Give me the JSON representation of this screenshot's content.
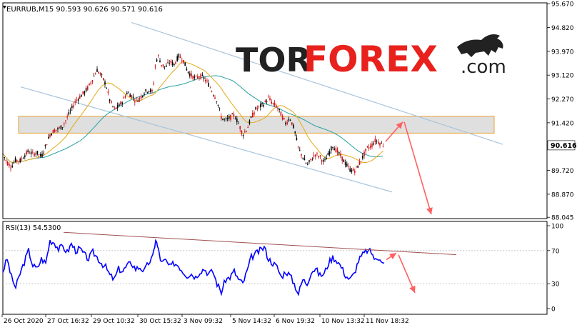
{
  "header": {
    "symbol_line": "EURRUB,M15  90.593 90.626 90.571 90.616"
  },
  "watermark": {
    "text_dark": "TOR",
    "text_red": "FOREX",
    "text_com": ".com"
  },
  "colors": {
    "background": "#ffffff",
    "candle_up": "#000000",
    "candle_down": "#d01010",
    "ma_fast": "#e6a817",
    "ma_slow": "#26a0a0",
    "channel": "#a8c4dc",
    "zone_fill": "#d9d9d9",
    "zone_border": "#e8a030",
    "arrow": "#ff5f5f",
    "rsi_line": "#0000ff",
    "rsi_trendline": "#a05050",
    "price_label_bg": "#ffffff"
  },
  "chart_data": [
    {
      "type": "candlestick",
      "title": "EURRUB,M15",
      "ohlc_header": "90.593 90.626 90.571 90.616",
      "y_ticks": [
        "95.670",
        "94.820",
        "93.970",
        "93.120",
        "92.270",
        "91.420",
        "90.616",
        "89.720",
        "88.870",
        "88.045"
      ],
      "current_price_label": "90.616",
      "ylim": [
        88.0,
        95.7
      ],
      "x_ticks": [
        "26 Oct 2020",
        "27 Oct 16:32",
        "29 Oct 10:32",
        "30 Oct 15:32",
        "3 Nov 09:32",
        "5 Nov 14:32",
        "6 Nov 19:32",
        "10 Nov 13:32",
        "11 Nov 18:32"
      ],
      "price_path": [
        [
          0,
          90.3
        ],
        [
          6,
          90.0
        ],
        [
          12,
          89.85
        ],
        [
          18,
          90.1
        ],
        [
          24,
          90.05
        ],
        [
          30,
          90.25
        ],
        [
          36,
          90.4
        ],
        [
          42,
          90.3
        ],
        [
          48,
          90.35
        ],
        [
          54,
          90.2
        ],
        [
          60,
          90.6
        ],
        [
          66,
          91.0
        ],
        [
          72,
          91.15
        ],
        [
          78,
          91.2
        ],
        [
          84,
          91.3
        ],
        [
          90,
          91.6
        ],
        [
          96,
          91.9
        ],
        [
          102,
          92.2
        ],
        [
          108,
          92.35
        ],
        [
          114,
          92.5
        ],
        [
          120,
          92.7
        ],
        [
          126,
          93.0
        ],
        [
          132,
          93.3
        ],
        [
          138,
          93.1
        ],
        [
          144,
          92.8
        ],
        [
          150,
          92.2
        ],
        [
          156,
          91.9
        ],
        [
          162,
          92.0
        ],
        [
          168,
          92.2
        ],
        [
          174,
          92.5
        ],
        [
          180,
          92.4
        ],
        [
          186,
          92.2
        ],
        [
          192,
          92.3
        ],
        [
          198,
          92.5
        ],
        [
          204,
          92.6
        ],
        [
          210,
          92.5
        ],
        [
          214,
          93.6
        ],
        [
          218,
          93.8
        ],
        [
          222,
          93.5
        ],
        [
          228,
          93.4
        ],
        [
          234,
          93.6
        ],
        [
          240,
          93.5
        ],
        [
          246,
          93.8
        ],
        [
          252,
          93.7
        ],
        [
          258,
          93.3
        ],
        [
          264,
          93.1
        ],
        [
          270,
          93.0
        ],
        [
          276,
          93.1
        ],
        [
          282,
          93.0
        ],
        [
          288,
          92.8
        ],
        [
          294,
          92.5
        ],
        [
          300,
          92.2
        ],
        [
          306,
          91.6
        ],
        [
          312,
          91.5
        ],
        [
          318,
          91.6
        ],
        [
          324,
          91.7
        ],
        [
          330,
          91.4
        ],
        [
          336,
          91.0
        ],
        [
          342,
          91.2
        ],
        [
          348,
          91.6
        ],
        [
          354,
          91.9
        ],
        [
          360,
          92.0
        ],
        [
          366,
          92.1
        ],
        [
          372,
          92.3
        ],
        [
          378,
          92.1
        ],
        [
          384,
          92.0
        ],
        [
          390,
          91.7
        ],
        [
          396,
          91.4
        ],
        [
          402,
          91.6
        ],
        [
          408,
          91.2
        ],
        [
          414,
          90.5
        ],
        [
          420,
          90.2
        ],
        [
          426,
          89.9
        ],
        [
          432,
          90.1
        ],
        [
          438,
          90.3
        ],
        [
          444,
          90.2
        ],
        [
          450,
          90.0
        ],
        [
          456,
          90.3
        ],
        [
          462,
          90.6
        ],
        [
          468,
          90.4
        ],
        [
          474,
          90.2
        ],
        [
          480,
          89.95
        ],
        [
          486,
          89.75
        ],
        [
          492,
          89.7
        ],
        [
          498,
          89.9
        ],
        [
          504,
          90.2
        ],
        [
          510,
          90.5
        ],
        [
          516,
          90.6
        ],
        [
          522,
          90.8
        ],
        [
          528,
          90.7
        ],
        [
          534,
          90.6
        ]
      ],
      "channel_lines": [
        {
          "name": "upper",
          "from": [
            180,
            95.0
          ],
          "to": [
            700,
            90.65
          ]
        },
        {
          "name": "lower",
          "from": [
            25,
            92.7
          ],
          "to": [
            545,
            88.95
          ]
        }
      ],
      "resistance_zone": {
        "from_x": 22,
        "to_x": 688,
        "y_top": 91.65,
        "y_bottom": 91.05
      },
      "forecast_arrows": [
        {
          "from": [
            536,
            90.75
          ],
          "to": [
            560,
            91.45
          ]
        },
        {
          "from": [
            562,
            91.45
          ],
          "to": [
            600,
            88.15
          ]
        }
      ]
    },
    {
      "type": "line",
      "title": "RSI(13) 54.5300",
      "y_ticks": [
        "100",
        "70",
        "30",
        "0"
      ],
      "ylim": [
        0,
        100
      ],
      "rsi_path": [
        [
          0,
          45
        ],
        [
          6,
          60
        ],
        [
          12,
          38
        ],
        [
          18,
          25
        ],
        [
          24,
          42
        ],
        [
          30,
          56
        ],
        [
          36,
          70
        ],
        [
          42,
          52
        ],
        [
          48,
          48
        ],
        [
          54,
          60
        ],
        [
          60,
          55
        ],
        [
          66,
          82
        ],
        [
          72,
          80
        ],
        [
          78,
          72
        ],
        [
          84,
          75
        ],
        [
          90,
          68
        ],
        [
          96,
          78
        ],
        [
          102,
          70
        ],
        [
          108,
          72
        ],
        [
          114,
          65
        ],
        [
          120,
          60
        ],
        [
          126,
          68
        ],
        [
          132,
          62
        ],
        [
          138,
          55
        ],
        [
          144,
          50
        ],
        [
          150,
          40
        ],
        [
          156,
          35
        ],
        [
          162,
          48
        ],
        [
          168,
          45
        ],
        [
          174,
          52
        ],
        [
          180,
          55
        ],
        [
          186,
          48
        ],
        [
          192,
          50
        ],
        [
          198,
          45
        ],
        [
          204,
          55
        ],
        [
          210,
          62
        ],
        [
          214,
          84
        ],
        [
          218,
          70
        ],
        [
          222,
          55
        ],
        [
          228,
          58
        ],
        [
          234,
          50
        ],
        [
          240,
          55
        ],
        [
          246,
          52
        ],
        [
          252,
          45
        ],
        [
          258,
          40
        ],
        [
          264,
          42
        ],
        [
          270,
          38
        ],
        [
          276,
          45
        ],
        [
          282,
          48
        ],
        [
          288,
          42
        ],
        [
          294,
          45
        ],
        [
          300,
          30
        ],
        [
          306,
          20
        ],
        [
          312,
          35
        ],
        [
          318,
          38
        ],
        [
          324,
          45
        ],
        [
          330,
          35
        ],
        [
          336,
          30
        ],
        [
          342,
          45
        ],
        [
          348,
          62
        ],
        [
          354,
          66
        ],
        [
          360,
          70
        ],
        [
          366,
          74
        ],
        [
          372,
          60
        ],
        [
          378,
          55
        ],
        [
          384,
          50
        ],
        [
          390,
          38
        ],
        [
          396,
          45
        ],
        [
          402,
          40
        ],
        [
          408,
          30
        ],
        [
          414,
          18
        ],
        [
          420,
          35
        ],
        [
          426,
          30
        ],
        [
          432,
          45
        ],
        [
          438,
          48
        ],
        [
          444,
          40
        ],
        [
          450,
          42
        ],
        [
          456,
          55
        ],
        [
          462,
          62
        ],
        [
          468,
          58
        ],
        [
          474,
          50
        ],
        [
          480,
          40
        ],
        [
          486,
          35
        ],
        [
          492,
          42
        ],
        [
          498,
          58
        ],
        [
          504,
          65
        ],
        [
          510,
          70
        ],
        [
          516,
          68
        ],
        [
          522,
          58
        ],
        [
          528,
          62
        ],
        [
          534,
          55
        ]
      ],
      "trendline": {
        "from": [
          85,
          92
        ],
        "to": [
          635,
          65
        ]
      },
      "levels": [
        70,
        30
      ],
      "forecast_arrows": [
        {
          "from": [
            537,
            59
          ],
          "to": [
            551,
            67
          ]
        },
        {
          "from": [
            554,
            65
          ],
          "to": [
            577,
            19
          ]
        }
      ]
    }
  ]
}
